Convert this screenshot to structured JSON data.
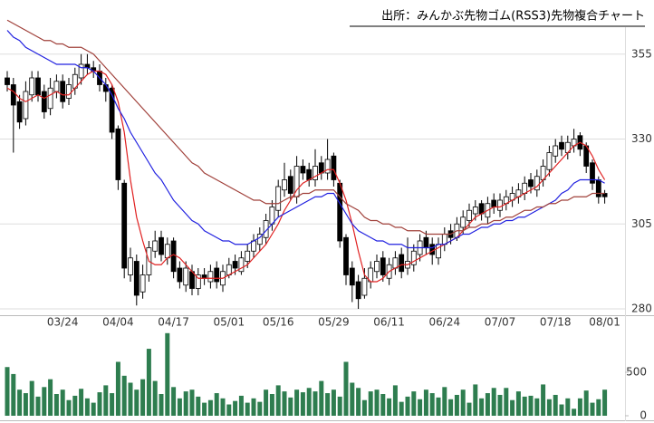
{
  "title": "出所：みんかぶ先物ゴム(RSS3)先物複合チャート",
  "chart_data": [
    {
      "type": "candlestick",
      "categories": [
        null,
        null,
        null,
        null,
        null,
        null,
        null,
        null,
        null,
        "03/24",
        null,
        null,
        null,
        null,
        null,
        null,
        null,
        null,
        "04/04",
        null,
        null,
        null,
        null,
        null,
        null,
        null,
        null,
        "04/17",
        null,
        null,
        null,
        null,
        null,
        null,
        null,
        null,
        "05/01",
        null,
        null,
        null,
        null,
        null,
        null,
        null,
        "05/16",
        null,
        null,
        null,
        null,
        null,
        null,
        null,
        null,
        "05/29",
        null,
        null,
        null,
        null,
        null,
        null,
        null,
        null,
        "06/11",
        null,
        null,
        null,
        null,
        null,
        null,
        null,
        null,
        "06/24",
        null,
        null,
        null,
        null,
        null,
        null,
        null,
        null,
        "07/07",
        null,
        null,
        null,
        null,
        null,
        null,
        null,
        null,
        "07/18",
        null,
        null,
        null,
        null,
        null,
        null,
        null,
        "08/01"
      ],
      "open": [
        348,
        346,
        341,
        336,
        343,
        348,
        344,
        339,
        344,
        347,
        342,
        345,
        348,
        352,
        351,
        350,
        346,
        345,
        333,
        317,
        290,
        294,
        285,
        290,
        297,
        301,
        295,
        300,
        292,
        287,
        291,
        286,
        290,
        288,
        292,
        287,
        290,
        294,
        291,
        294,
        297,
        299,
        301,
        305,
        309,
        315,
        319,
        313,
        322,
        321,
        318,
        323,
        320,
        325,
        317,
        301,
        292,
        288,
        284,
        288,
        291,
        295,
        289,
        292,
        296,
        292,
        293,
        296,
        301,
        299,
        295,
        299,
        303,
        301,
        304,
        306,
        308,
        311,
        307,
        312,
        309,
        311,
        312,
        313,
        314,
        318,
        315,
        318,
        321,
        325,
        329,
        326,
        328,
        331,
        328,
        323,
        318,
        314
      ],
      "high": [
        350,
        348,
        343,
        347,
        350,
        350,
        346,
        348,
        349,
        349,
        348,
        351,
        355,
        355,
        353,
        352,
        348,
        346,
        334,
        318,
        298,
        296,
        293,
        300,
        303,
        303,
        301,
        301,
        294,
        294,
        293,
        292,
        292,
        293,
        294,
        293,
        295,
        296,
        297,
        299,
        302,
        304,
        308,
        312,
        318,
        323,
        321,
        325,
        324,
        323,
        327,
        325,
        330,
        326,
        318,
        302,
        294,
        290,
        292,
        294,
        296,
        297,
        295,
        297,
        298,
        301,
        299,
        302,
        303,
        301,
        301,
        304,
        305,
        307,
        309,
        311,
        312,
        312,
        313,
        314,
        314,
        315,
        316,
        317,
        319,
        320,
        321,
        324,
        328,
        330,
        331,
        331,
        333,
        332,
        329,
        324,
        319,
        315
      ],
      "low": [
        344,
        326,
        333,
        334,
        341,
        341,
        336,
        337,
        342,
        339,
        340,
        343,
        346,
        349,
        348,
        344,
        341,
        330,
        315,
        289,
        288,
        281,
        283,
        288,
        295,
        294,
        293,
        289,
        286,
        285,
        284,
        284,
        287,
        286,
        286,
        285,
        289,
        290,
        290,
        292,
        295,
        297,
        299,
        303,
        307,
        313,
        312,
        311,
        318,
        316,
        316,
        318,
        318,
        316,
        298,
        287,
        282,
        280,
        283,
        286,
        289,
        288,
        287,
        290,
        289,
        290,
        291,
        294,
        296,
        293,
        293,
        297,
        299,
        300,
        302,
        304,
        306,
        306,
        305,
        308,
        307,
        309,
        310,
        311,
        312,
        314,
        313,
        316,
        319,
        323,
        325,
        324,
        326,
        325,
        320,
        315,
        311,
        311
      ],
      "close": [
        346,
        340,
        335,
        344,
        348,
        343,
        338,
        345,
        347,
        341,
        346,
        349,
        352,
        351,
        350,
        346,
        344,
        332,
        318,
        292,
        295,
        284,
        290,
        298,
        300,
        296,
        299,
        291,
        288,
        292,
        286,
        290,
        289,
        291,
        288,
        291,
        293,
        292,
        295,
        297,
        300,
        302,
        306,
        310,
        316,
        318,
        314,
        322,
        320,
        318,
        322,
        320,
        324,
        318,
        300,
        290,
        287,
        283,
        289,
        292,
        294,
        290,
        293,
        295,
        291,
        294,
        297,
        300,
        298,
        296,
        299,
        302,
        301,
        305,
        307,
        309,
        310,
        308,
        311,
        310,
        312,
        313,
        314,
        315,
        317,
        316,
        319,
        322,
        326,
        328,
        327,
        329,
        330,
        327,
        322,
        317,
        313,
        313
      ],
      "lines": [
        {
          "color": "#e02020",
          "values": [
            345,
            344,
            342,
            341,
            342,
            343,
            342,
            343,
            344,
            343,
            343,
            345,
            347,
            349,
            350,
            350,
            349,
            346,
            341,
            332,
            318,
            307,
            300,
            294,
            293,
            293,
            295,
            296,
            295,
            293,
            291,
            289,
            289,
            289,
            289,
            289,
            290,
            291,
            292,
            293,
            295,
            297,
            299,
            302,
            305,
            309,
            312,
            315,
            317,
            318,
            319,
            320,
            321,
            321,
            317,
            312,
            305,
            297,
            290,
            288,
            288,
            289,
            291,
            292,
            293,
            293,
            294,
            295,
            296,
            297,
            298,
            299,
            300,
            301,
            303,
            305,
            307,
            308,
            309,
            310,
            310,
            311,
            312,
            313,
            314,
            315,
            316,
            318,
            320,
            322,
            324,
            326,
            328,
            329,
            328,
            325,
            321,
            318
          ]
        },
        {
          "color": "#2020e0",
          "values": [
            362,
            360,
            359,
            357,
            356,
            355,
            354,
            353,
            352,
            352,
            352,
            352,
            351,
            351,
            350,
            348,
            346,
            343,
            339,
            336,
            332,
            329,
            326,
            323,
            320,
            318,
            315,
            312,
            310,
            308,
            306,
            305,
            303,
            302,
            301,
            300,
            300,
            299,
            299,
            299,
            300,
            301,
            303,
            305,
            307,
            308,
            309,
            310,
            311,
            312,
            313,
            313,
            314,
            314,
            311,
            308,
            305,
            303,
            302,
            301,
            300,
            300,
            299,
            299,
            299,
            298,
            298,
            298,
            298,
            298,
            299,
            299,
            300,
            301,
            302,
            302,
            303,
            304,
            304,
            305,
            305,
            306,
            306,
            307,
            307,
            308,
            309,
            310,
            311,
            312,
            314,
            315,
            317,
            318,
            318,
            318,
            318,
            317
          ]
        },
        {
          "color": "#a0403a",
          "values": [
            365,
            364,
            363,
            362,
            361,
            360,
            359,
            359,
            358,
            358,
            357,
            357,
            357,
            356,
            355,
            353,
            351,
            349,
            347,
            345,
            343,
            341,
            339,
            337,
            335,
            333,
            331,
            329,
            327,
            325,
            323,
            322,
            320,
            319,
            318,
            317,
            316,
            315,
            314,
            313,
            312,
            312,
            311,
            311,
            311,
            312,
            313,
            313,
            314,
            314,
            315,
            315,
            315,
            315,
            313,
            311,
            310,
            309,
            307,
            306,
            306,
            305,
            305,
            304,
            304,
            303,
            303,
            303,
            302,
            302,
            302,
            302,
            302,
            303,
            303,
            304,
            304,
            305,
            305,
            306,
            306,
            307,
            307,
            308,
            309,
            309,
            310,
            310,
            311,
            311,
            312,
            312,
            313,
            313,
            313,
            314,
            314,
            314
          ]
        }
      ],
      "up_color": "#ffffff",
      "down_color": "#000000",
      "ylim": [
        278,
        370
      ],
      "yticks": [
        280,
        305,
        330,
        355
      ],
      "grid": true
    },
    {
      "type": "bar",
      "values": [
        560,
        480,
        300,
        260,
        400,
        220,
        330,
        420,
        250,
        300,
        180,
        230,
        310,
        200,
        150,
        270,
        350,
        260,
        620,
        460,
        380,
        300,
        420,
        770,
        400,
        250,
        950,
        330,
        200,
        280,
        300,
        220,
        150,
        180,
        260,
        200,
        130,
        170,
        230,
        150,
        200,
        160,
        300,
        250,
        350,
        280,
        210,
        300,
        270,
        320,
        280,
        400,
        260,
        300,
        220,
        620,
        380,
        320,
        180,
        280,
        300,
        250,
        200,
        350,
        160,
        220,
        280,
        190,
        300,
        260,
        210,
        330,
        190,
        240,
        300,
        150,
        360,
        200,
        260,
        320,
        240,
        320,
        180,
        280,
        220,
        230,
        200,
        360,
        190,
        240,
        130,
        200,
        80,
        200,
        290,
        150,
        190,
        300
      ],
      "color": "#2e7d4f",
      "ylim": [
        0,
        1000
      ],
      "yticks": [
        0,
        500
      ]
    }
  ]
}
